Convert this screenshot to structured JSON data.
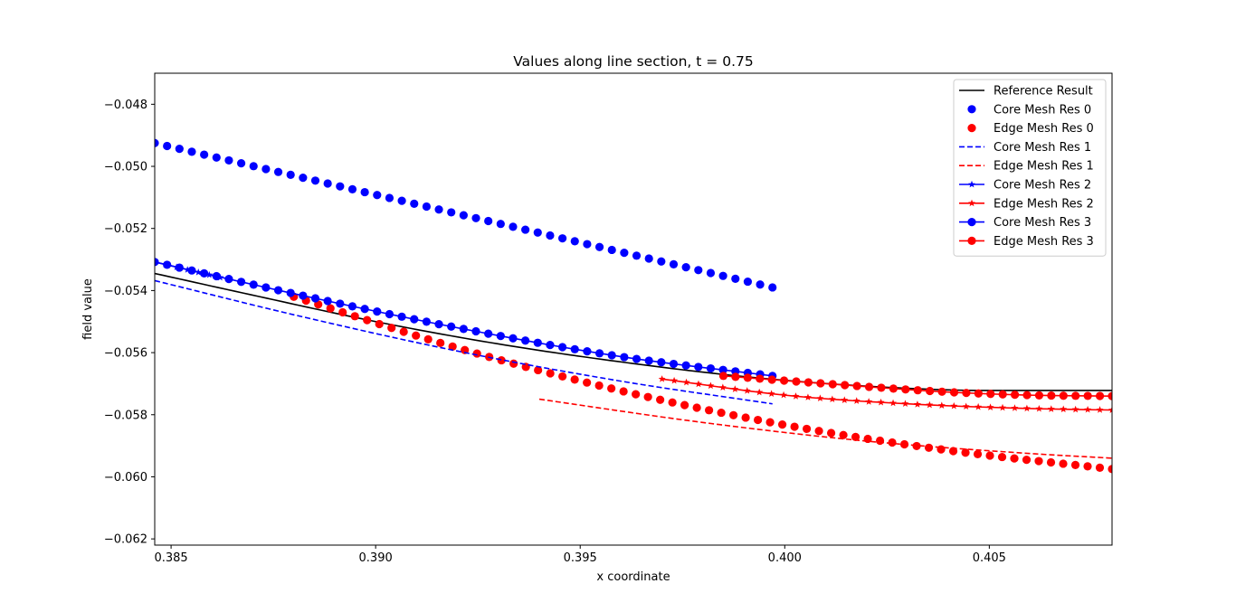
{
  "chart_data": {
    "type": "line",
    "title": "Values along line section, t = 0.75",
    "xlabel": "x coordinate",
    "ylabel": "field value",
    "xlim": [
      0.3846,
      0.408
    ],
    "ylim": [
      -0.0622,
      -0.047
    ],
    "xticks": [
      0.385,
      0.39,
      0.395,
      0.4,
      0.405
    ],
    "xtick_labels": [
      "0.385",
      "0.390",
      "0.395",
      "0.400",
      "0.405"
    ],
    "yticks": [
      -0.062,
      -0.06,
      -0.058,
      -0.056,
      -0.054,
      -0.052,
      -0.05,
      -0.048
    ],
    "ytick_labels": [
      "−0.062",
      "−0.060",
      "−0.058",
      "−0.056",
      "−0.054",
      "−0.052",
      "−0.050",
      "−0.048"
    ],
    "grid": false,
    "legend_position": "top-right",
    "series": [
      {
        "name": "Reference Result",
        "color": "#000000",
        "linestyle": "solid",
        "marker": "none",
        "x": [
          0.3846,
          0.387,
          0.39,
          0.393,
          0.396,
          0.399,
          0.402,
          0.405,
          0.408
        ],
        "y": [
          -0.05345,
          -0.05415,
          -0.055,
          -0.05572,
          -0.0563,
          -0.05677,
          -0.05708,
          -0.05722,
          -0.05722
        ]
      },
      {
        "name": "Core Mesh Res 0",
        "color": "#0000ff",
        "linestyle": "none",
        "marker": "circle",
        "x_start": 0.3846,
        "x_end": 0.3997,
        "n": 51,
        "y_start": -0.04925,
        "y_end": -0.0539
      },
      {
        "name": "Edge Mesh Res 0",
        "color": "#ff0000",
        "linestyle": "none",
        "marker": "circle",
        "x_start": 0.388,
        "x_end": 0.408,
        "n": 68,
        "x": [
          0.388,
          0.392,
          0.396,
          0.4,
          0.404,
          0.408
        ],
        "y": [
          -0.0542,
          -0.05585,
          -0.05723,
          -0.05833,
          -0.05915,
          -0.05975
        ]
      },
      {
        "name": "Core Mesh Res 1",
        "color": "#0000ff",
        "linestyle": "dashed",
        "marker": "none",
        "x": [
          0.3846,
          0.388,
          0.392,
          0.396,
          0.3997
        ],
        "y": [
          -0.05368,
          -0.05478,
          -0.05595,
          -0.05692,
          -0.05765
        ]
      },
      {
        "name": "Edge Mesh Res 1",
        "color": "#ff0000",
        "linestyle": "dashed",
        "marker": "none",
        "x": [
          0.394,
          0.398,
          0.402,
          0.406,
          0.408
        ],
        "y": [
          -0.0575,
          -0.05825,
          -0.05885,
          -0.05925,
          -0.0594
        ]
      },
      {
        "name": "Core Mesh Res 2",
        "color": "#0000ff",
        "linestyle": "solid",
        "marker": "star",
        "x_start": 0.3846,
        "x_end": 0.3862,
        "n": 7,
        "y_start": -0.05308,
        "y_end": -0.05358
      },
      {
        "name": "Edge Mesh Res 2",
        "color": "#ff0000",
        "linestyle": "solid",
        "marker": "star",
        "x_start": 0.397,
        "x_end": 0.408,
        "n": 38,
        "x": [
          0.397,
          0.4,
          0.403,
          0.406,
          0.408
        ],
        "y": [
          -0.05685,
          -0.05737,
          -0.05765,
          -0.0578,
          -0.05785
        ]
      },
      {
        "name": "Core Mesh Res 3",
        "color": "#0000ff",
        "linestyle": "solid",
        "marker": "circle",
        "x_start": 0.3846,
        "x_end": 0.3997,
        "n": 51,
        "x": [
          0.3846,
          0.388,
          0.392,
          0.396,
          0.3997
        ],
        "y": [
          -0.05308,
          -0.0541,
          -0.0552,
          -0.05613,
          -0.05675
        ]
      },
      {
        "name": "Edge Mesh Res 3",
        "color": "#ff0000",
        "linestyle": "solid",
        "marker": "circle",
        "x_start": 0.3985,
        "x_end": 0.408,
        "n": 33,
        "x": [
          0.3985,
          0.401,
          0.404,
          0.406,
          0.408
        ],
        "y": [
          -0.05675,
          -0.057,
          -0.05727,
          -0.05737,
          -0.0574
        ]
      }
    ]
  }
}
